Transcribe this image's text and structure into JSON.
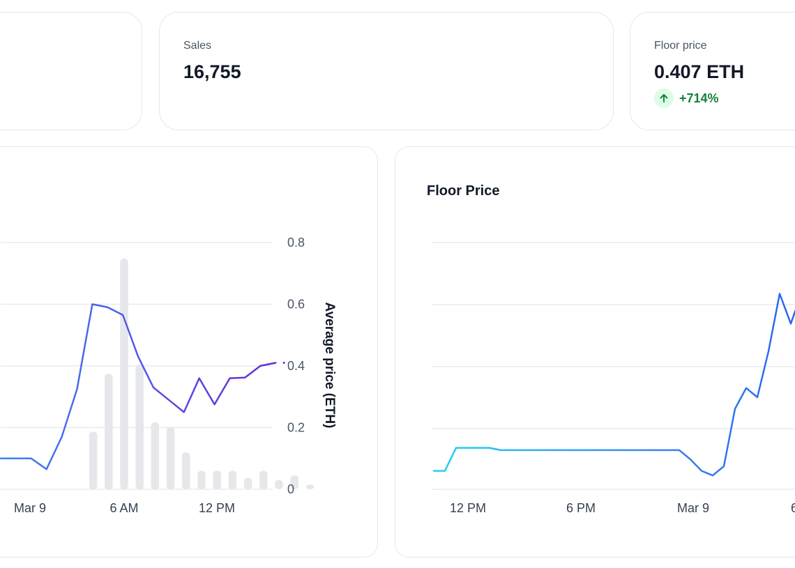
{
  "stats": {
    "sales": {
      "label": "Sales",
      "value": "16,755"
    },
    "floor": {
      "label": "Floor price",
      "value": "0.407 ETH",
      "change": "+714%"
    }
  },
  "charts": {
    "floor_title": "Floor Price"
  },
  "chart_data": [
    {
      "type": "bar+line",
      "title": "",
      "x_tick_labels": [
        "Mar 9",
        "6 AM",
        "12 PM"
      ],
      "y_right_label": "Average price (ETH)",
      "y_right_ticks": [
        "0.8",
        "0.6",
        "0.4",
        "0.2",
        "0"
      ],
      "y_right_range": [
        0,
        0.8
      ],
      "grid": true,
      "bars_relative_volume": [
        0,
        0,
        0,
        0.25,
        0.5,
        1.0,
        0.54,
        0.29,
        0.27,
        0.16,
        0.08,
        0.08,
        0.08,
        0.05,
        0.08,
        0.04,
        0.06,
        0.02
      ],
      "bar_color": "#e5e7eb",
      "average_price_line": {
        "values": [
          0.1,
          0.1,
          0.1,
          0.065,
          0.17,
          0.325,
          0.6,
          0.59,
          0.565,
          0.43,
          0.33,
          0.29,
          0.25,
          0.36,
          0.275,
          0.36,
          0.362,
          0.4,
          0.41
        ],
        "colors": [
          "#3b82f6",
          "#6d28d9"
        ]
      }
    },
    {
      "type": "line",
      "title": "Floor Price",
      "x_tick_labels": [
        "12 PM",
        "6 PM",
        "Mar 9",
        "6"
      ],
      "grid": true,
      "line_colors": [
        "#22d3ee",
        "#2563eb"
      ],
      "relative_values": [
        [
          0,
          0.08
        ],
        [
          0.02,
          0.08
        ],
        [
          0.04,
          0.18
        ],
        [
          0.1,
          0.18
        ],
        [
          0.12,
          0.17
        ],
        [
          0.3,
          0.17
        ],
        [
          0.44,
          0.17
        ],
        [
          0.46,
          0.13
        ],
        [
          0.48,
          0.08
        ],
        [
          0.5,
          0.06
        ],
        [
          0.52,
          0.1
        ],
        [
          0.54,
          0.35
        ],
        [
          0.56,
          0.44
        ],
        [
          0.58,
          0.4
        ],
        [
          0.6,
          0.6
        ],
        [
          0.62,
          0.85
        ],
        [
          0.64,
          0.72
        ],
        [
          0.66,
          0.86
        ],
        [
          0.68,
          0.7
        ]
      ]
    }
  ]
}
